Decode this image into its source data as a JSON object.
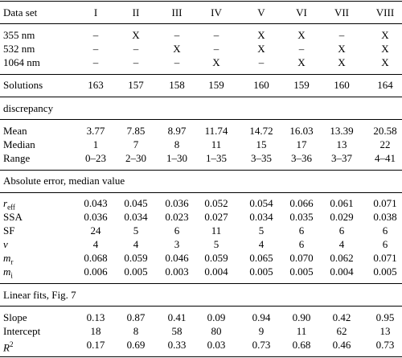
{
  "header": {
    "label": "Data set",
    "columns": [
      "I",
      "II",
      "III",
      "IV",
      "V",
      "VI",
      "VII",
      "VIII"
    ]
  },
  "blocks": [
    {
      "rows": [
        {
          "label": "355 nm",
          "cells": [
            "–",
            "X",
            "–",
            "–",
            "X",
            "X",
            "–",
            "X"
          ]
        },
        {
          "label": "532 nm",
          "cells": [
            "–",
            "–",
            "X",
            "–",
            "X",
            "–",
            "X",
            "X"
          ]
        },
        {
          "label": "1064 nm",
          "cells": [
            "–",
            "–",
            "–",
            "X",
            "–",
            "X",
            "X",
            "X"
          ]
        }
      ]
    },
    {
      "rows": [
        {
          "label": "Solutions",
          "cells": [
            "163",
            "157",
            "158",
            "159",
            "160",
            "159",
            "160",
            "164"
          ]
        }
      ]
    },
    {
      "title": "discrepancy"
    },
    {
      "rows": [
        {
          "label": "Mean",
          "cells": [
            "3.77",
            "7.85",
            "8.97",
            "11.74",
            "14.72",
            "16.03",
            "13.39",
            "20.58"
          ]
        },
        {
          "label": "Median",
          "cells": [
            "1",
            "7",
            "8",
            "11",
            "15",
            "17",
            "13",
            "22"
          ]
        },
        {
          "label": "Range",
          "cells": [
            "0–23",
            "2–30",
            "1–30",
            "1–35",
            "3–35",
            "3–36",
            "3–37",
            "4–41"
          ]
        }
      ]
    },
    {
      "title": "Absolute error, median value"
    },
    {
      "rows": [
        {
          "label": "r",
          "label_sub": "eff",
          "italic": true,
          "cells": [
            "0.043",
            "0.045",
            "0.036",
            "0.052",
            "0.054",
            "0.066",
            "0.061",
            "0.071"
          ]
        },
        {
          "label": "SSA",
          "cells": [
            "0.036",
            "0.034",
            "0.023",
            "0.027",
            "0.034",
            "0.035",
            "0.029",
            "0.038"
          ]
        },
        {
          "label": "SF",
          "cells": [
            "24",
            "5",
            "6",
            "11",
            "5",
            "6",
            "6",
            "6"
          ]
        },
        {
          "label": "v",
          "italic": true,
          "cells": [
            "4",
            "4",
            "3",
            "5",
            "4",
            "6",
            "4",
            "6"
          ]
        },
        {
          "label": "m",
          "label_sub": "r",
          "italic": true,
          "cells": [
            "0.068",
            "0.059",
            "0.046",
            "0.059",
            "0.065",
            "0.070",
            "0.062",
            "0.071"
          ]
        },
        {
          "label": "m",
          "label_sub": "i",
          "italic": true,
          "cells": [
            "0.006",
            "0.005",
            "0.003",
            "0.004",
            "0.005",
            "0.005",
            "0.004",
            "0.005"
          ]
        }
      ]
    },
    {
      "title": "Linear fits, Fig. 7"
    },
    {
      "rows": [
        {
          "label": "Slope",
          "cells": [
            "0.13",
            "0.87",
            "0.41",
            "0.09",
            "0.94",
            "0.90",
            "0.42",
            "0.95"
          ]
        },
        {
          "label": "Intercept",
          "cells": [
            "18",
            "8",
            "58",
            "80",
            "9",
            "11",
            "62",
            "13"
          ]
        },
        {
          "label": "R",
          "label_sup": "2",
          "italic": true,
          "cells": [
            "0.17",
            "0.69",
            "0.33",
            "0.03",
            "0.73",
            "0.68",
            "0.46",
            "0.73"
          ]
        }
      ]
    }
  ]
}
